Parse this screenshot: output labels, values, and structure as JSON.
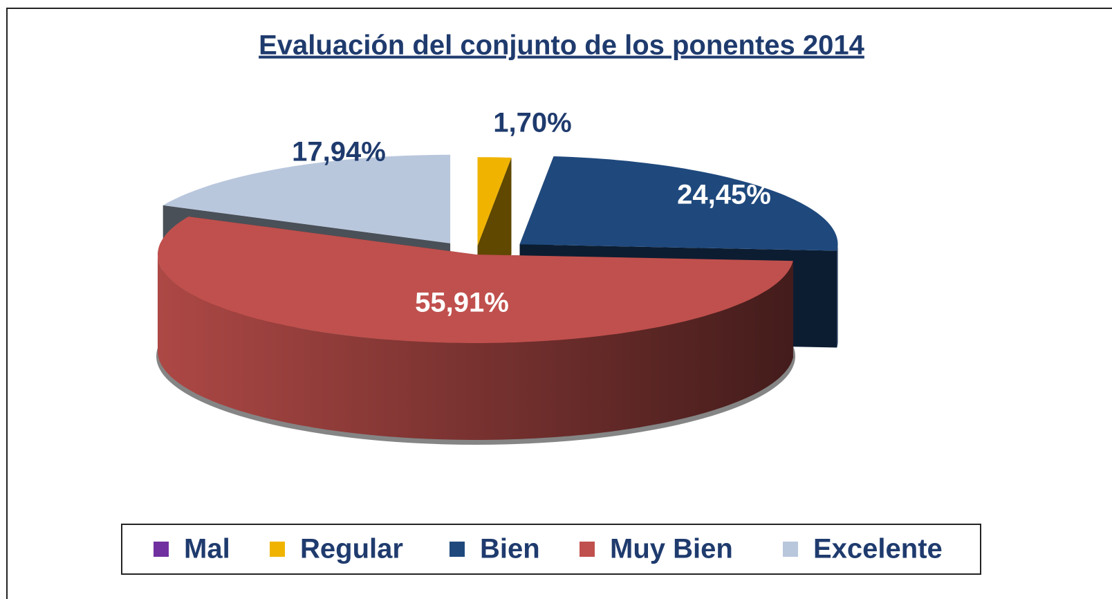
{
  "chart_data": {
    "type": "pie",
    "title": "Evaluación del conjunto de los ponentes 2014",
    "categories": [
      "Mal",
      "Regular",
      "Bien",
      "Muy Bien",
      "Excelente"
    ],
    "values": [
      0,
      1.7,
      24.45,
      55.91,
      17.94
    ],
    "value_labels": [
      null,
      "1,70%",
      "24,45%",
      "55,91%",
      "17,94%"
    ],
    "colors": [
      "#7030a0",
      "#f0b400",
      "#1f497d",
      "#c0504d",
      "#b9c7dd"
    ],
    "legend": "bottom"
  }
}
